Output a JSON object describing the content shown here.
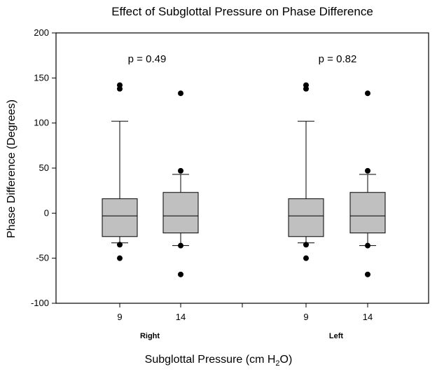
{
  "chart_data": {
    "type": "box",
    "title": "Effect of Subglottal Pressure on Phase Difference",
    "ylabel": "Phase Difference (Degrees)",
    "xlabel_main": "Subglottal Pressure (cm H",
    "xlabel_sub": "2",
    "xlabel_end": "O)",
    "ylim": [
      -100,
      200
    ],
    "yticks": [
      -100,
      -50,
      0,
      50,
      100,
      150,
      200
    ],
    "groups": [
      {
        "name": "Right",
        "pvalue": "p = 0.49"
      },
      {
        "name": "Left",
        "pvalue": "p = 0.82"
      }
    ],
    "boxes": [
      {
        "group": "Right",
        "category": "9",
        "whisker_low": -33,
        "q1": -26,
        "median": -3,
        "q3": 16,
        "whisker_high": 102,
        "outliers": [
          142,
          138,
          -35,
          -50
        ]
      },
      {
        "group": "Right",
        "category": "14",
        "whisker_low": -36,
        "q1": -22,
        "median": -3,
        "q3": 23,
        "whisker_high": 43,
        "outliers": [
          133,
          47,
          -36,
          -68
        ]
      },
      {
        "group": "Left",
        "category": "9",
        "whisker_low": -33,
        "q1": -26,
        "median": -3,
        "q3": 16,
        "whisker_high": 102,
        "outliers": [
          142,
          138,
          -35,
          -50
        ]
      },
      {
        "group": "Left",
        "category": "14",
        "whisker_low": -36,
        "q1": -22,
        "median": -3,
        "q3": 23,
        "whisker_high": 43,
        "outliers": [
          133,
          47,
          -36,
          -68
        ]
      }
    ],
    "box_fill": "#c0c0c0"
  }
}
